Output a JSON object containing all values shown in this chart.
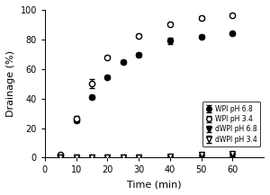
{
  "title": "",
  "xlabel": "Time (min)",
  "ylabel": "Drainage (%)",
  "xlim": [
    0,
    70
  ],
  "ylim": [
    0,
    100
  ],
  "xticks": [
    0,
    10,
    20,
    30,
    40,
    50,
    60
  ],
  "yticks": [
    0,
    20,
    40,
    60,
    80,
    100
  ],
  "WPI_68_x": [
    5,
    10,
    15,
    20,
    25,
    30,
    40,
    50,
    60
  ],
  "WPI_68_y": [
    1.5,
    25.5,
    41.0,
    54.5,
    65.0,
    69.5,
    79.0,
    82.0,
    84.0
  ],
  "WPI_68_yerr": [
    0.3,
    1.5,
    1.5,
    1.0,
    1.0,
    1.0,
    2.0,
    1.0,
    1.0
  ],
  "WPI_34_x": [
    5,
    10,
    15,
    20,
    30,
    40,
    50,
    60
  ],
  "WPI_34_y": [
    2.0,
    26.5,
    50.0,
    68.0,
    82.5,
    90.5,
    94.5,
    96.5
  ],
  "WPI_34_yerr": [
    0.3,
    2.0,
    3.0,
    1.0,
    1.0,
    1.0,
    1.0,
    1.0
  ],
  "dWPI_68_x": [
    5,
    10,
    15,
    20,
    25,
    30,
    40,
    50,
    60
  ],
  "dWPI_68_y": [
    0.3,
    0.3,
    0.3,
    0.3,
    0.3,
    0.3,
    0.5,
    0.5,
    0.8
  ],
  "dWPI_68_yerr": [
    0.05,
    0.05,
    0.05,
    0.05,
    0.05,
    0.05,
    0.05,
    0.05,
    0.05
  ],
  "dWPI_34_x": [
    5,
    10,
    15,
    20,
    25,
    30,
    40,
    50,
    60
  ],
  "dWPI_34_y": [
    0.4,
    0.4,
    0.4,
    0.4,
    0.4,
    0.4,
    0.8,
    2.0,
    3.0
  ],
  "dWPI_34_yerr": [
    0.05,
    0.05,
    0.05,
    0.05,
    0.05,
    0.05,
    0.1,
    0.2,
    0.2
  ],
  "legend_labels": [
    "WPI pH 6.8",
    "WPI pH 3.4",
    "dWPI pH 6.8",
    "dWPI pH 3.4"
  ],
  "background_color": "#ffffff"
}
